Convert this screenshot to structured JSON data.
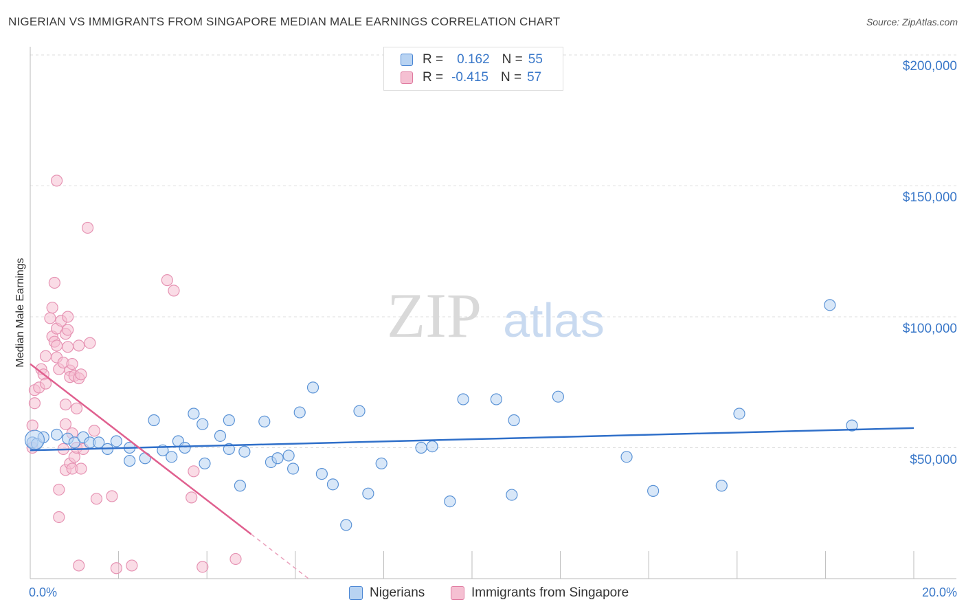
{
  "title": "NIGERIAN VS IMMIGRANTS FROM SINGAPORE MEDIAN MALE EARNINGS CORRELATION CHART",
  "source": "Source: ZipAtlas.com",
  "watermark": {
    "zip": "ZIP",
    "atlas": "atlas"
  },
  "legend_top": {
    "row1": {
      "r_label": "R =",
      "r_value": "0.162",
      "n_label": "N =",
      "n_value": "55"
    },
    "row2": {
      "r_label": "R =",
      "r_value": "-0.415",
      "n_label": "N =",
      "n_value": "57"
    }
  },
  "legend_bottom": {
    "series1": "Nigerians",
    "series2": "Immigrants from Singapore"
  },
  "colors": {
    "blue": "#4a86d4",
    "blue_fill": "#b8d3f2",
    "pink": "#e07aa0",
    "pink_fill": "#f5c0d2",
    "axis_text": "#3a78c9"
  },
  "chart_data": {
    "type": "scatter",
    "title": "NIGERIAN VS IMMIGRANTS FROM SINGAPORE MEDIAN MALE EARNINGS CORRELATION CHART",
    "xlabel": "",
    "ylabel": "Median Male Earnings",
    "xlim": [
      0,
      20
    ],
    "ylim": [
      0,
      210000
    ],
    "x_tick_labels": [
      "0.0%",
      "20.0%"
    ],
    "y_tick_labels": [
      "$50,000",
      "$100,000",
      "$150,000",
      "$200,000"
    ],
    "y_ticks": [
      50000,
      100000,
      150000,
      200000
    ],
    "grid": true,
    "series": [
      {
        "name": "Nigerians",
        "R": 0.162,
        "N": 55,
        "trend": {
          "x": [
            0,
            20
          ],
          "y": [
            49000,
            57500
          ]
        },
        "points": [
          [
            0.05,
            52000
          ],
          [
            0.15,
            51500
          ],
          [
            0.3,
            54000
          ],
          [
            0.6,
            55000
          ],
          [
            0.85,
            53500
          ],
          [
            1.0,
            52000
          ],
          [
            1.2,
            54000
          ],
          [
            1.35,
            52000
          ],
          [
            1.55,
            52000
          ],
          [
            1.95,
            52500
          ],
          [
            1.75,
            49500
          ],
          [
            2.25,
            50000
          ],
          [
            2.25,
            45000
          ],
          [
            2.6,
            46000
          ],
          [
            2.8,
            60500
          ],
          [
            3.0,
            49000
          ],
          [
            3.2,
            46500
          ],
          [
            3.35,
            52500
          ],
          [
            3.5,
            50000
          ],
          [
            3.7,
            63000
          ],
          [
            3.9,
            59000
          ],
          [
            3.95,
            44000
          ],
          [
            4.3,
            54500
          ],
          [
            4.5,
            60500
          ],
          [
            4.5,
            49500
          ],
          [
            4.75,
            35500
          ],
          [
            4.85,
            48500
          ],
          [
            5.3,
            60000
          ],
          [
            5.45,
            44500
          ],
          [
            5.6,
            46000
          ],
          [
            5.85,
            47000
          ],
          [
            5.95,
            42000
          ],
          [
            6.1,
            63500
          ],
          [
            6.4,
            73000
          ],
          [
            6.6,
            40000
          ],
          [
            6.85,
            36000
          ],
          [
            7.15,
            20500
          ],
          [
            7.45,
            64000
          ],
          [
            7.65,
            32500
          ],
          [
            7.95,
            44000
          ],
          [
            8.85,
            50000
          ],
          [
            9.1,
            50500
          ],
          [
            9.5,
            29500
          ],
          [
            9.8,
            68500
          ],
          [
            10.55,
            68500
          ],
          [
            10.9,
            32000
          ],
          [
            10.95,
            60500
          ],
          [
            11.95,
            69500
          ],
          [
            13.5,
            46500
          ],
          [
            14.1,
            33500
          ],
          [
            15.65,
            35500
          ],
          [
            16.05,
            63000
          ],
          [
            18.1,
            104500
          ],
          [
            18.6,
            58500
          ],
          [
            0.1,
            53000
          ]
        ]
      },
      {
        "name": "Immigrants from Singapore",
        "R": -0.415,
        "N": 57,
        "trend": {
          "x": [
            0,
            5.0
          ],
          "y": [
            82000,
            17000
          ]
        },
        "trend_dashed": {
          "x": [
            5.0,
            6.3
          ],
          "y": [
            17000,
            0
          ]
        },
        "points": [
          [
            0.05,
            58500
          ],
          [
            0.05,
            50000
          ],
          [
            0.1,
            72000
          ],
          [
            0.1,
            67000
          ],
          [
            0.2,
            73000
          ],
          [
            0.25,
            80000
          ],
          [
            0.3,
            78000
          ],
          [
            0.35,
            85000
          ],
          [
            0.35,
            74500
          ],
          [
            0.45,
            99500
          ],
          [
            0.5,
            92500
          ],
          [
            0.5,
            103500
          ],
          [
            0.55,
            90500
          ],
          [
            0.6,
            95500
          ],
          [
            0.6,
            84500
          ],
          [
            0.6,
            89000
          ],
          [
            0.65,
            80000
          ],
          [
            0.7,
            98500
          ],
          [
            0.75,
            82500
          ],
          [
            0.8,
            93500
          ],
          [
            0.8,
            59000
          ],
          [
            0.85,
            95000
          ],
          [
            0.85,
            100000
          ],
          [
            0.9,
            79500
          ],
          [
            0.95,
            82000
          ],
          [
            0.6,
            152000
          ],
          [
            0.55,
            113000
          ],
          [
            0.65,
            34000
          ],
          [
            0.65,
            23500
          ],
          [
            0.75,
            49500
          ],
          [
            0.8,
            66500
          ],
          [
            0.8,
            41500
          ],
          [
            0.85,
            88500
          ],
          [
            0.9,
            77000
          ],
          [
            0.9,
            44000
          ],
          [
            0.95,
            55500
          ],
          [
            0.95,
            42000
          ],
          [
            1.0,
            77500
          ],
          [
            1.0,
            46500
          ],
          [
            1.05,
            65000
          ],
          [
            1.05,
            50000
          ],
          [
            1.1,
            76500
          ],
          [
            1.1,
            89000
          ],
          [
            1.15,
            78000
          ],
          [
            1.15,
            42000
          ],
          [
            1.2,
            49500
          ],
          [
            1.3,
            134000
          ],
          [
            1.35,
            90000
          ],
          [
            1.45,
            56500
          ],
          [
            1.5,
            30500
          ],
          [
            1.85,
            31500
          ],
          [
            1.95,
            4000
          ],
          [
            2.3,
            5000
          ],
          [
            3.1,
            114000
          ],
          [
            3.25,
            110000
          ],
          [
            3.7,
            41000
          ],
          [
            3.65,
            31000
          ]
        ],
        "extra_points": [
          [
            1.1,
            5000
          ],
          [
            3.9,
            4500
          ],
          [
            4.65,
            7500
          ]
        ]
      }
    ]
  }
}
